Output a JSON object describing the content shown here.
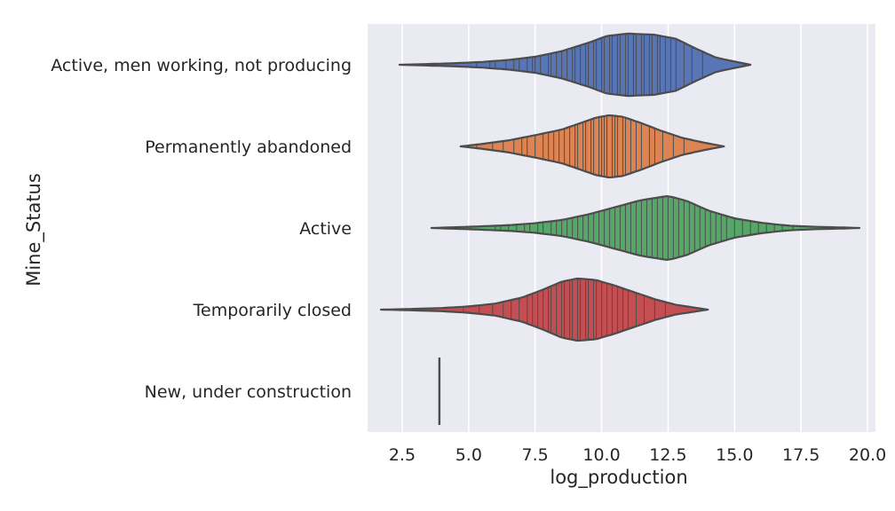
{
  "chart_data": {
    "type": "violin",
    "orientation": "horizontal",
    "inner": "stick",
    "xlabel": "log_production",
    "ylabel": "Mine_Status",
    "xlim": [
      1.2,
      20.3
    ],
    "xticks": [
      2.5,
      5.0,
      7.5,
      10.0,
      12.5,
      15.0,
      17.5,
      20.0
    ],
    "xtick_labels": [
      "2.5",
      "5.0",
      "7.5",
      "10.0",
      "12.5",
      "15.0",
      "17.5",
      "20.0"
    ],
    "grid": true,
    "background": "#eaeaf2",
    "outline_color": "#4c4c4c",
    "categories": [
      "Active, men working, not producing",
      "Permanently abandoned",
      "Active",
      "Temporarily closed",
      "New, under construction"
    ],
    "series": [
      {
        "category": "Active, men working, not producing",
        "color": "#5875b5",
        "min": 2.4,
        "max": 15.6,
        "profile": [
          [
            2.4,
            0.0
          ],
          [
            3.5,
            0.02
          ],
          [
            4.5,
            0.04
          ],
          [
            5.5,
            0.07
          ],
          [
            6.5,
            0.12
          ],
          [
            7.5,
            0.2
          ],
          [
            8.5,
            0.34
          ],
          [
            9.5,
            0.55
          ],
          [
            10.2,
            0.72
          ],
          [
            11.0,
            0.78
          ],
          [
            12.0,
            0.75
          ],
          [
            12.8,
            0.65
          ],
          [
            13.5,
            0.42
          ],
          [
            14.3,
            0.18
          ],
          [
            15.0,
            0.08
          ],
          [
            15.6,
            0.0
          ]
        ],
        "sticks": [
          5.3,
          5.8,
          6.0,
          6.4,
          6.7,
          6.9,
          7.2,
          7.4,
          7.5,
          7.7,
          8.0,
          8.1,
          8.3,
          8.5,
          8.7,
          8.9,
          9.0,
          9.2,
          9.4,
          9.5,
          9.7,
          9.8,
          10.0,
          10.1,
          10.3,
          10.4,
          10.6,
          10.7,
          10.9,
          11.0,
          11.2,
          11.3,
          11.5,
          11.6,
          11.8,
          11.9,
          12.1,
          12.2,
          12.4,
          12.6,
          12.8,
          13.1,
          13.4,
          13.8
        ]
      },
      {
        "category": "Permanently abandoned",
        "color": "#dd8452",
        "min": 4.7,
        "max": 14.6,
        "profile": [
          [
            4.7,
            0.0
          ],
          [
            5.5,
            0.06
          ],
          [
            6.5,
            0.15
          ],
          [
            7.5,
            0.28
          ],
          [
            8.5,
            0.42
          ],
          [
            9.2,
            0.58
          ],
          [
            9.8,
            0.72
          ],
          [
            10.3,
            0.78
          ],
          [
            10.8,
            0.74
          ],
          [
            11.5,
            0.58
          ],
          [
            12.2,
            0.4
          ],
          [
            13.0,
            0.22
          ],
          [
            13.8,
            0.1
          ],
          [
            14.6,
            0.0
          ]
        ],
        "sticks": [
          5.3,
          5.9,
          6.3,
          6.7,
          7.0,
          7.2,
          7.5,
          7.8,
          8.0,
          8.2,
          8.4,
          8.6,
          8.8,
          9.0,
          9.1,
          9.3,
          9.4,
          9.6,
          9.7,
          9.9,
          10.0,
          10.1,
          10.2,
          10.4,
          10.5,
          10.6,
          10.8,
          10.9,
          11.1,
          11.3,
          11.5,
          11.8,
          12.0,
          12.3,
          12.7,
          13.1
        ]
      },
      {
        "category": "Active",
        "color": "#55a868",
        "min": 3.6,
        "max": 19.7,
        "profile": [
          [
            3.6,
            0.0
          ],
          [
            5.0,
            0.03
          ],
          [
            6.5,
            0.07
          ],
          [
            7.5,
            0.12
          ],
          [
            8.5,
            0.2
          ],
          [
            9.5,
            0.34
          ],
          [
            10.5,
            0.52
          ],
          [
            11.5,
            0.7
          ],
          [
            12.5,
            0.8
          ],
          [
            13.2,
            0.68
          ],
          [
            14.0,
            0.44
          ],
          [
            15.0,
            0.24
          ],
          [
            16.0,
            0.13
          ],
          [
            17.0,
            0.06
          ],
          [
            18.0,
            0.03
          ],
          [
            19.0,
            0.015
          ],
          [
            19.7,
            0.0
          ]
        ],
        "sticks": [
          6.0,
          6.2,
          6.5,
          6.8,
          7.1,
          7.3,
          7.6,
          7.8,
          8.1,
          8.3,
          8.5,
          8.7,
          8.9,
          9.1,
          9.3,
          9.5,
          9.7,
          9.9,
          10.1,
          10.3,
          10.5,
          10.7,
          10.9,
          11.1,
          11.3,
          11.5,
          11.7,
          11.9,
          12.1,
          12.3,
          12.5,
          12.7,
          12.9,
          13.1,
          13.3,
          13.5,
          13.7,
          13.9,
          14.1,
          14.3,
          14.5,
          14.7,
          15.0,
          15.3,
          15.6,
          15.9,
          16.2,
          16.5,
          16.8,
          17.2
        ]
      },
      {
        "category": "Temporarily closed",
        "color": "#c44e52",
        "min": 1.7,
        "max": 14.0,
        "profile": [
          [
            1.7,
            0.0
          ],
          [
            3.0,
            0.02
          ],
          [
            4.0,
            0.04
          ],
          [
            5.0,
            0.08
          ],
          [
            6.0,
            0.15
          ],
          [
            7.0,
            0.3
          ],
          [
            7.8,
            0.5
          ],
          [
            8.5,
            0.7
          ],
          [
            9.1,
            0.78
          ],
          [
            9.8,
            0.74
          ],
          [
            10.5,
            0.6
          ],
          [
            11.3,
            0.42
          ],
          [
            12.0,
            0.26
          ],
          [
            12.8,
            0.12
          ],
          [
            13.5,
            0.05
          ],
          [
            14.0,
            0.0
          ]
        ],
        "sticks": [
          4.8,
          5.4,
          5.9,
          6.3,
          6.6,
          6.9,
          7.2,
          7.4,
          7.6,
          7.8,
          8.0,
          8.1,
          8.3,
          8.5,
          8.6,
          8.8,
          8.9,
          9.1,
          9.2,
          9.4,
          9.5,
          9.7,
          9.8,
          10.0,
          10.2,
          10.4,
          10.6,
          10.8,
          11.0,
          11.3,
          11.6,
          12.0,
          12.4
        ]
      },
      {
        "category": "New, under construction",
        "color": "#8172b3",
        "min": 3.9,
        "max": 3.9,
        "profile": [],
        "sticks": [
          3.9
        ]
      }
    ]
  }
}
